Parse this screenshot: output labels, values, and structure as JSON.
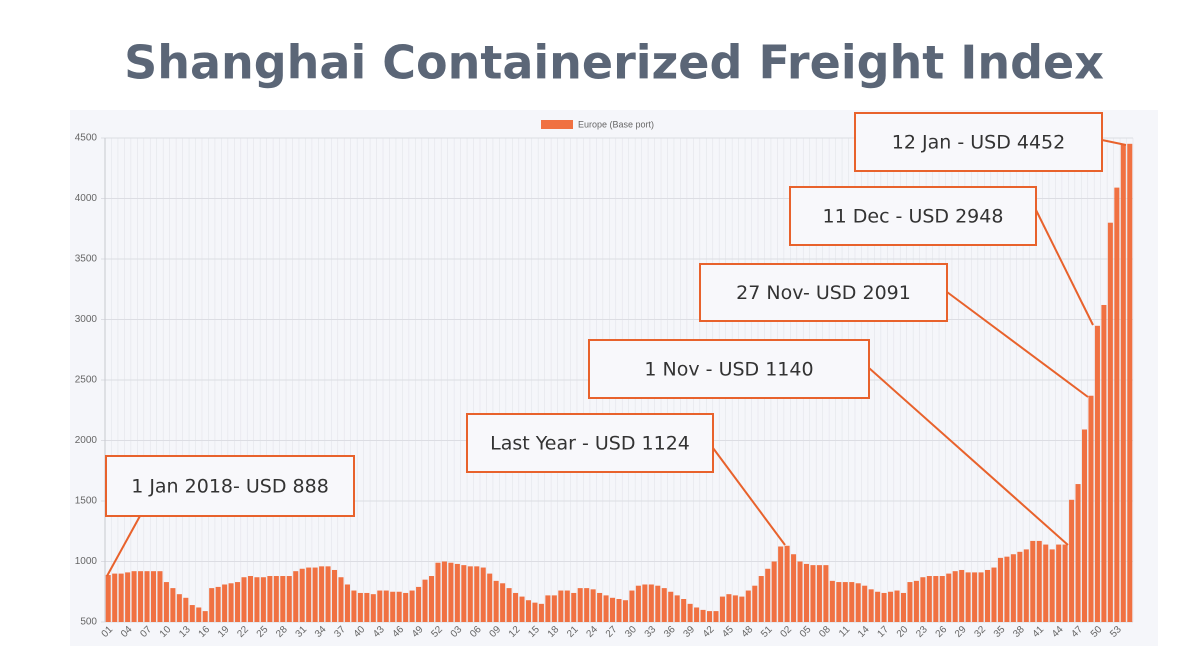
{
  "chart_data": {
    "type": "bar",
    "title": "Shanghai Containerized Freight Index",
    "legend": "Europe (Base port)",
    "color": "#f07142",
    "ylim": [
      500,
      4500
    ],
    "yticks": [
      500,
      1000,
      1500,
      2000,
      2500,
      3000,
      3500,
      4000,
      4500
    ],
    "grid": true,
    "annotations": [
      "1 Jan 2018- USD 888",
      "Last Year - USD 1124",
      "1 Nov - USD 1140",
      "27 Nov- USD 2091",
      "11 Dec - USD 2948",
      "12 Jan - USD 4452"
    ],
    "categories": [
      "01",
      null,
      null,
      "04",
      null,
      null,
      "07",
      null,
      null,
      "10",
      null,
      null,
      "13",
      null,
      null,
      "16",
      null,
      null,
      "19",
      null,
      null,
      "22",
      null,
      null,
      "25",
      null,
      null,
      "28",
      null,
      null,
      "31",
      null,
      null,
      "34",
      null,
      null,
      "37",
      null,
      null,
      "40",
      null,
      null,
      "43",
      null,
      null,
      "46",
      null,
      null,
      "49",
      null,
      null,
      "52",
      null,
      null,
      "03",
      null,
      null,
      "06",
      null,
      null,
      "09",
      null,
      null,
      "12",
      null,
      null,
      "15",
      null,
      null,
      "18",
      null,
      null,
      "21",
      null,
      null,
      "24",
      null,
      null,
      "27",
      null,
      null,
      "30",
      null,
      null,
      "33",
      null,
      null,
      "36",
      null,
      null,
      "39",
      null,
      null,
      "42",
      null,
      null,
      "45",
      null,
      null,
      "48",
      null,
      null,
      "51",
      null,
      null,
      "02",
      null,
      null,
      "05",
      null,
      null,
      "08",
      null,
      null,
      "11",
      null,
      null,
      "14",
      null,
      null,
      "17",
      null,
      null,
      "20",
      null,
      null,
      "23",
      null,
      null,
      "26",
      null,
      null,
      "29",
      null,
      null,
      "32",
      null,
      null,
      "35",
      null,
      null,
      "38",
      null,
      null,
      "41",
      null,
      null,
      "44",
      null,
      null,
      "47",
      null,
      null,
      "50",
      null,
      null,
      "53",
      null,
      null
    ],
    "values": [
      888,
      900,
      900,
      910,
      920,
      920,
      920,
      920,
      920,
      830,
      780,
      730,
      700,
      640,
      620,
      590,
      780,
      790,
      810,
      820,
      830,
      870,
      880,
      870,
      870,
      880,
      880,
      880,
      880,
      920,
      940,
      950,
      950,
      960,
      960,
      930,
      870,
      810,
      760,
      740,
      740,
      730,
      760,
      760,
      750,
      750,
      740,
      760,
      790,
      850,
      880,
      990,
      1000,
      990,
      980,
      970,
      960,
      960,
      950,
      900,
      840,
      820,
      780,
      740,
      710,
      680,
      660,
      650,
      720,
      720,
      760,
      760,
      740,
      780,
      780,
      770,
      740,
      720,
      700,
      690,
      680,
      760,
      800,
      810,
      810,
      800,
      780,
      750,
      720,
      690,
      650,
      620,
      600,
      590,
      590,
      710,
      730,
      720,
      710,
      760,
      800,
      880,
      940,
      1000,
      1124,
      1130,
      1060,
      1000,
      980,
      970,
      970,
      970,
      840,
      830,
      830,
      830,
      820,
      800,
      770,
      750,
      740,
      750,
      760,
      740,
      830,
      840,
      870,
      880,
      880,
      880,
      900,
      920,
      930,
      910,
      910,
      910,
      930,
      950,
      1030,
      1040,
      1060,
      1080,
      1100,
      1170,
      1170,
      1140,
      1100,
      1140,
      1140,
      1510,
      1640,
      2091,
      2370,
      2948,
      3120,
      3800,
      4090,
      4450,
      4452
    ]
  }
}
